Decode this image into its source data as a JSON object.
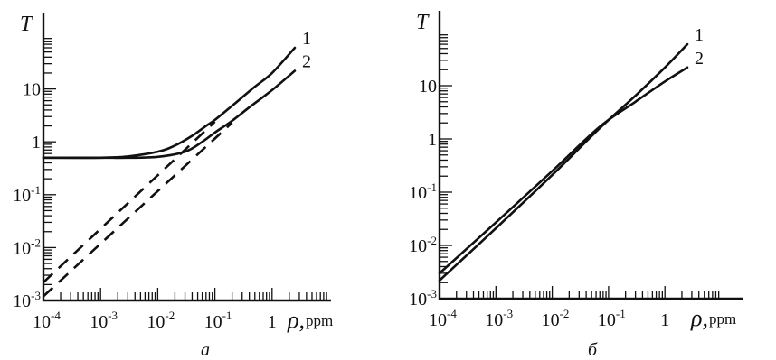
{
  "chart_data": [
    {
      "type": "line",
      "panel_label": "а",
      "xlabel_symbol": "ρ,",
      "xlabel_unit": "ppm",
      "ylabel": "T",
      "xscale": "log",
      "yscale": "log",
      "xlim": [
        0.0001,
        10
      ],
      "ylim": [
        0.001,
        100
      ],
      "x_tick_labels": [
        {
          "value": 0.0001,
          "base": "10",
          "exp": "-4"
        },
        {
          "value": 0.001,
          "base": "10",
          "exp": "-3"
        },
        {
          "value": 0.01,
          "base": "10",
          "exp": "-2"
        },
        {
          "value": 0.1,
          "base": "10",
          "exp": "-1"
        },
        {
          "value": 1,
          "base": "1",
          "exp": ""
        }
      ],
      "y_tick_labels": [
        {
          "value": 0.001,
          "base": "10",
          "exp": "-3"
        },
        {
          "value": 0.01,
          "base": "10",
          "exp": "-2"
        },
        {
          "value": 0.1,
          "base": "10",
          "exp": "-1"
        },
        {
          "value": 1,
          "base": "1",
          "exp": ""
        },
        {
          "value": 10,
          "base": "10",
          "exp": ""
        }
      ],
      "series": [
        {
          "name": "1",
          "style": "solid",
          "x": [
            0.0001,
            0.001,
            0.003,
            0.01,
            0.02,
            0.04,
            0.07,
            0.1,
            0.2,
            0.5,
            1,
            2.5
          ],
          "y": [
            0.5,
            0.5,
            0.53,
            0.65,
            0.85,
            1.3,
            2.0,
            2.6,
            4.8,
            11,
            20,
            60
          ]
        },
        {
          "name": "2",
          "style": "solid",
          "x": [
            0.0001,
            0.001,
            0.003,
            0.01,
            0.03,
            0.06,
            0.1,
            0.2,
            0.4,
            1,
            2.5
          ],
          "y": [
            0.5,
            0.5,
            0.5,
            0.52,
            0.65,
            1.0,
            1.5,
            2.5,
            4.5,
            9.5,
            22
          ]
        },
        {
          "style": "dashed",
          "x": [
            0.0001,
            0.1
          ],
          "y": [
            0.0022,
            2.4
          ]
        },
        {
          "style": "dashed",
          "x": [
            0.0001,
            0.2
          ],
          "y": [
            0.0012,
            2.3
          ]
        }
      ]
    },
    {
      "type": "line",
      "panel_label": "б",
      "xlabel_symbol": "ρ,",
      "xlabel_unit": "ppm",
      "ylabel": "T",
      "xscale": "log",
      "yscale": "log",
      "xlim": [
        0.0001,
        10
      ],
      "ylim": [
        0.001,
        100
      ],
      "x_tick_labels": [
        {
          "value": 0.0001,
          "base": "10",
          "exp": "-4"
        },
        {
          "value": 0.001,
          "base": "10",
          "exp": "-3"
        },
        {
          "value": 0.01,
          "base": "10",
          "exp": "-2"
        },
        {
          "value": 0.1,
          "base": "10",
          "exp": "-1"
        },
        {
          "value": 1,
          "base": "1",
          "exp": ""
        }
      ],
      "y_tick_labels": [
        {
          "value": 0.001,
          "base": "10",
          "exp": "-3"
        },
        {
          "value": 0.01,
          "base": "10",
          "exp": "-2"
        },
        {
          "value": 0.1,
          "base": "10",
          "exp": "-1"
        },
        {
          "value": 1,
          "base": "1",
          "exp": ""
        },
        {
          "value": 10,
          "base": "10",
          "exp": ""
        }
      ],
      "series": [
        {
          "name": "1",
          "style": "solid",
          "x": [
            0.0001,
            0.001,
            0.01,
            0.07,
            0.3,
            1,
            2.5
          ],
          "y": [
            0.0022,
            0.021,
            0.21,
            1.6,
            6.5,
            22,
            60
          ]
        },
        {
          "name": "2",
          "style": "solid",
          "x": [
            0.0001,
            0.001,
            0.01,
            0.07,
            0.3,
            1,
            2.5
          ],
          "y": [
            0.003,
            0.027,
            0.25,
            1.7,
            5.0,
            12,
            22
          ]
        }
      ]
    }
  ]
}
